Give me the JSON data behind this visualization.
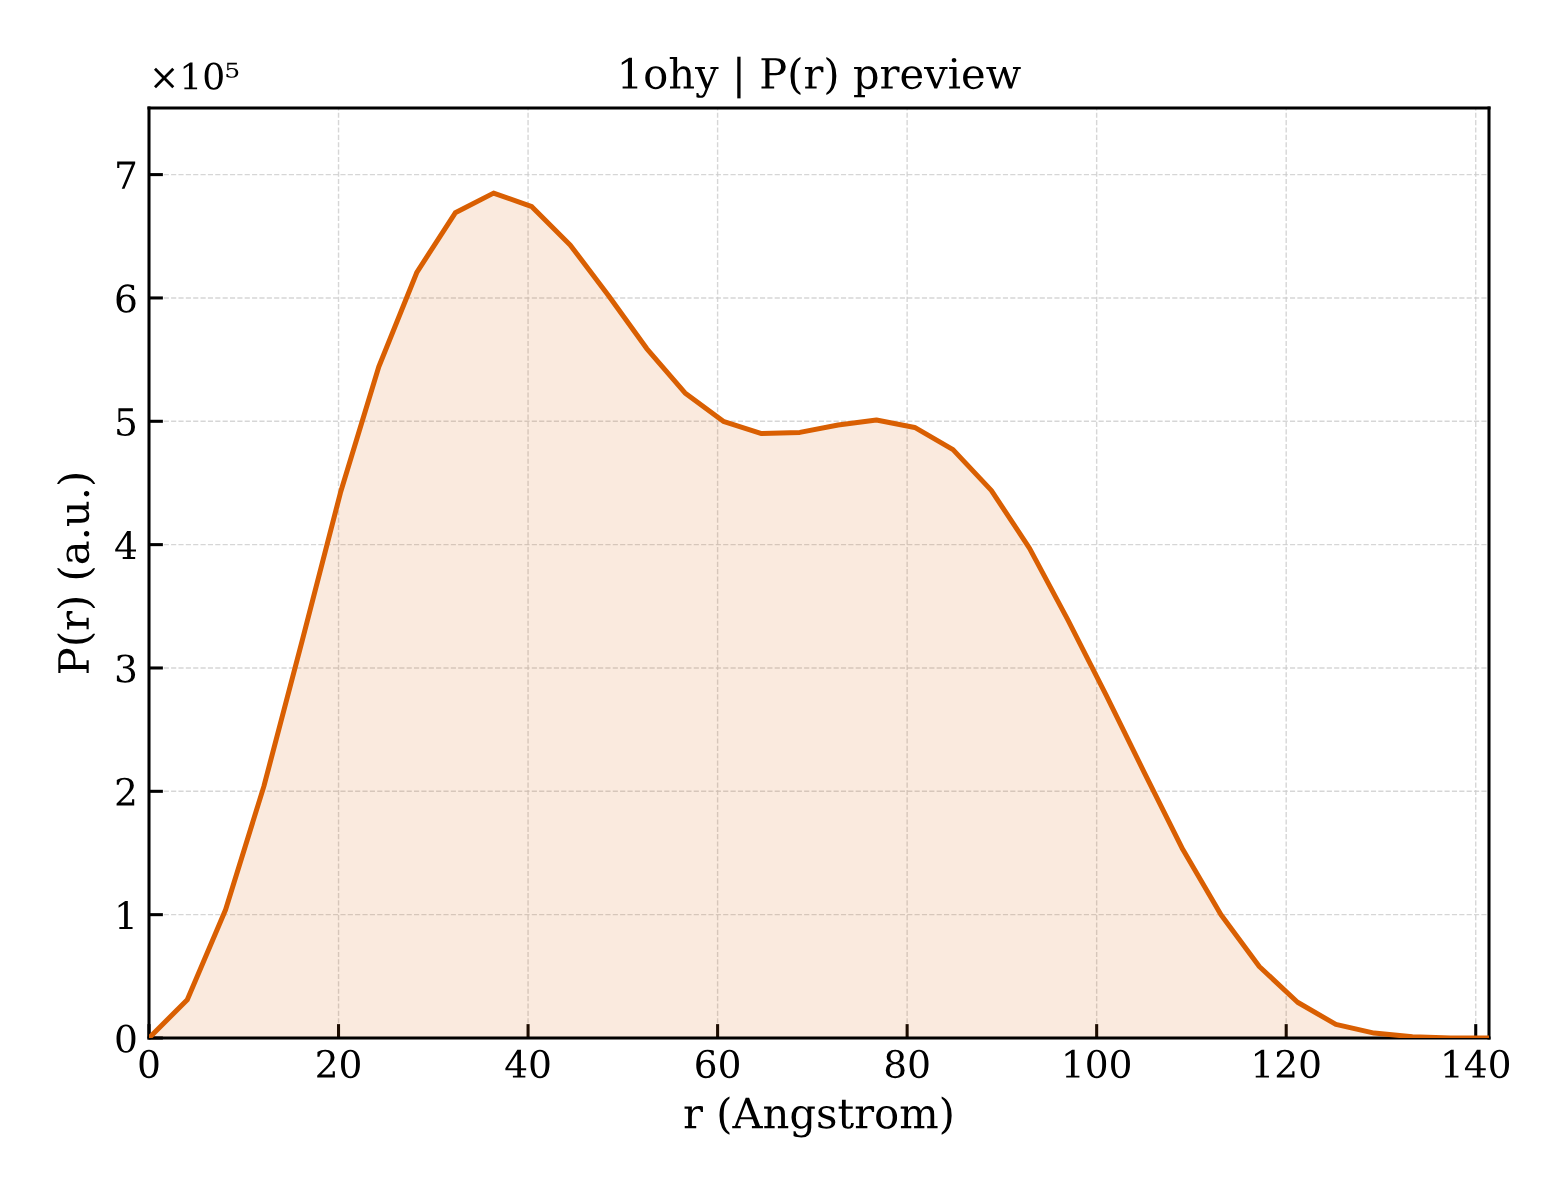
{
  "chart_data": {
    "type": "area",
    "title": "1ohy | P(r) preview",
    "xlabel": "r (Angstrom)",
    "ylabel": "P(r) (a.u.)",
    "annotations": [
      "×10⁵"
    ],
    "x": [
      0,
      4.04,
      8.08,
      12.12,
      16.16,
      20.2,
      24.24,
      28.28,
      32.32,
      36.36,
      40.4,
      44.44,
      48.48,
      52.52,
      56.56,
      60.6,
      64.64,
      68.68,
      72.72,
      76.76,
      80.8,
      84.84,
      88.88,
      92.92,
      96.96,
      101.0,
      105.04,
      109.08,
      113.12,
      117.16,
      121.2,
      125.24,
      129.28,
      133.32,
      137.36,
      141.4
    ],
    "series": [
      {
        "color": "#d95f02",
        "values": [
          0,
          0.31,
          1.04,
          2.04,
          3.22,
          4.42,
          5.44,
          6.21,
          6.69,
          6.85,
          6.74,
          6.43,
          6.02,
          5.59,
          5.23,
          5.0,
          4.9,
          4.91,
          4.97,
          5.01,
          4.95,
          4.77,
          4.44,
          3.97,
          3.39,
          2.78,
          2.15,
          1.53,
          1.0,
          0.58,
          0.29,
          0.11,
          0.04,
          0.01,
          0.0,
          0.0
        ]
      }
    ],
    "xlim": [
      0,
      141.4
    ],
    "ylim": [
      0,
      7.54
    ],
    "xticks": [
      0,
      20,
      40,
      60,
      80,
      100,
      120,
      140
    ],
    "yticks": [
      0,
      1,
      2,
      3,
      4,
      5,
      6,
      7
    ],
    "grid": true
  }
}
